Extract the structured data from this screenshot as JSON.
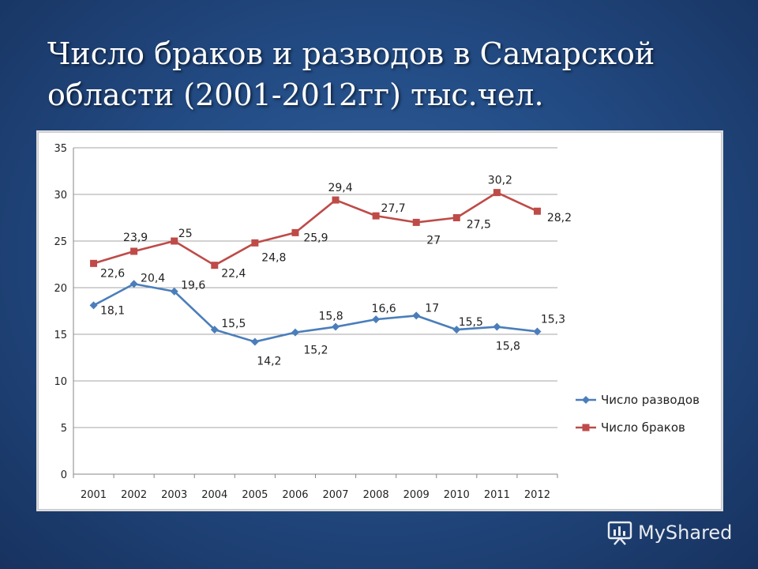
{
  "slide": {
    "title_line1": "Число браков и разводов в Самарской",
    "title_line2": "области (2001-2012гг) тыс.чел."
  },
  "watermark": {
    "text": "MyShared",
    "icon": "presentation-board-icon"
  },
  "chart_data": {
    "type": "line",
    "title": "",
    "xlabel": "",
    "ylabel": "",
    "x": [
      "2001",
      "2002",
      "2003",
      "2004",
      "2005",
      "2006",
      "2007",
      "2008",
      "2009",
      "2010",
      "2011",
      "2012"
    ],
    "ylim": [
      0,
      35
    ],
    "yticks": [
      0,
      5,
      10,
      15,
      20,
      25,
      30,
      35
    ],
    "grid": true,
    "legend_position": "right",
    "series": [
      {
        "name": "Число разводов",
        "color": "#4a7ebb",
        "marker": "diamond",
        "values": [
          18.1,
          20.4,
          19.6,
          15.5,
          14.2,
          15.2,
          15.8,
          16.6,
          17,
          15.5,
          15.8,
          15.3
        ],
        "labels": [
          "18,1",
          "20,4",
          "19,6",
          "15,5",
          "14,2",
          "15,2",
          "15,8",
          "16,6",
          "17",
          "15,5",
          "15,8",
          "15,3"
        ]
      },
      {
        "name": "Число браков",
        "color": "#be4b48",
        "marker": "square",
        "values": [
          22.6,
          23.9,
          25,
          22.4,
          24.8,
          25.9,
          29.4,
          27.7,
          27,
          27.5,
          30.2,
          28.2
        ],
        "labels": [
          "22,6",
          "23,9",
          "25",
          "22,4",
          "24,8",
          "25,9",
          "29,4",
          "27,7",
          "27",
          "27,5",
          "30,2",
          "28,2"
        ]
      }
    ]
  }
}
